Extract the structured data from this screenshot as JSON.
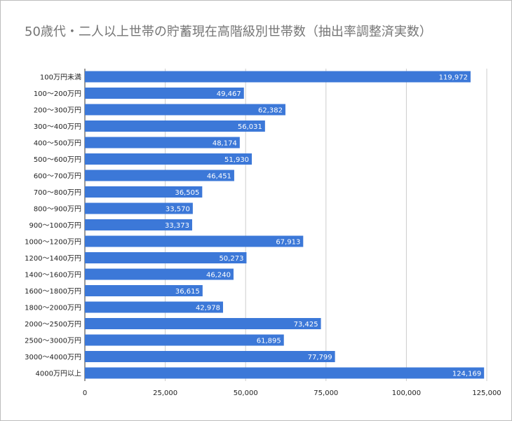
{
  "chart_data": {
    "type": "bar",
    "orientation": "horizontal",
    "title": "50歳代・二人以上世帯の貯蓄現在高階級別世帯数（抽出率調整済実数）",
    "xlabel": "",
    "ylabel": "",
    "categories": [
      "100万円未満",
      "100〜200万円",
      "200〜300万円",
      "300〜400万円",
      "400〜500万円",
      "500〜600万円",
      "600〜700万円",
      "700〜800万円",
      "800〜900万円",
      "900〜1000万円",
      "1000〜1200万円",
      "1200〜1400万円",
      "1400〜1600万円",
      "1600〜1800万円",
      "1800〜2000万円",
      "2000〜2500万円",
      "2500〜3000万円",
      "3000〜4000万円",
      "4000万円以上"
    ],
    "values": [
      119972,
      49467,
      62382,
      56031,
      48174,
      51930,
      46451,
      36505,
      33570,
      33373,
      67913,
      50273,
      46240,
      36615,
      42978,
      73425,
      61895,
      77799,
      124169
    ],
    "data_labels": [
      "119,972",
      "49,467",
      "62,382",
      "56,031",
      "48,174",
      "51,930",
      "46,451",
      "36,505",
      "33,570",
      "33,373",
      "67,913",
      "50,273",
      "46,240",
      "36,615",
      "42,978",
      "73,425",
      "61,895",
      "77,799",
      "124,169"
    ],
    "xlim": [
      0,
      125000
    ],
    "ticks": [
      0,
      25000,
      50000,
      75000,
      100000,
      125000
    ],
    "tick_labels": [
      "0",
      "25,000",
      "50,000",
      "75,000",
      "100,000",
      "125,000"
    ],
    "bar_color": "#3c78d8",
    "grid": true,
    "legend": "none"
  }
}
